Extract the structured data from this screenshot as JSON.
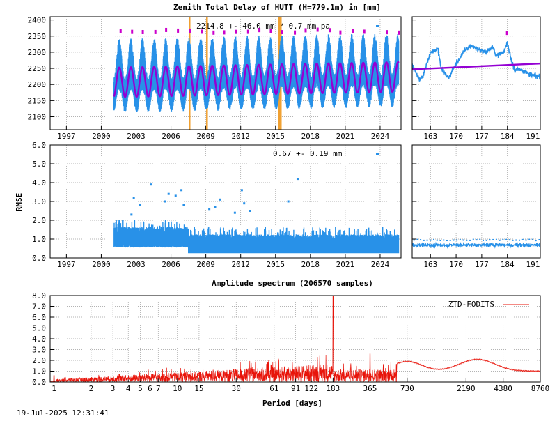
{
  "colors": {
    "ztd": "#2891e8",
    "model": "#9400d3",
    "outlier": "#cc00cc",
    "breaks": "#f0a030",
    "spectrum": "#e8140a",
    "grid": "#9a9a9a"
  },
  "footer": {
    "timestamp": "19-Jul-2025 12:31:41"
  },
  "chart_data": [
    {
      "id": "ztd",
      "type": "scatter",
      "title": "Zenith Total Delay of HUTT (H=779.1m) in [mm]",
      "annotation": "2214.8 +-  46.0 mm /  0.7 mm pa",
      "ylim": [
        2060,
        2410
      ],
      "yticks": [
        "2100",
        "2150",
        "2200",
        "2250",
        "2300",
        "2350",
        "2400"
      ],
      "xlim": [
        1995.6,
        2025.8
      ],
      "xticks": [
        "1997",
        "2000",
        "2003",
        "2006",
        "2009",
        "2012",
        "2015",
        "2018",
        "2021",
        "2024"
      ],
      "data_start": 2001.1,
      "data_end": 2025.6,
      "mean": 2214.8,
      "seasonal_amplitude": 46.0,
      "trend_mm_per_year": 0.7,
      "breaks": [
        2007.6,
        2009.1,
        2015.3,
        2015.45
      ],
      "grid": true
    },
    {
      "id": "ztd-zoom",
      "type": "scatter",
      "xlim": [
        158,
        193
      ],
      "xticks": [
        "163",
        "170",
        "177",
        "184",
        "191"
      ],
      "ylim": [
        2060,
        2410
      ],
      "grid": true
    },
    {
      "id": "rmse",
      "type": "scatter",
      "annotation": "0.67 +-  0.19 mm",
      "ylabel": "RMSE",
      "ylim": [
        0.0,
        6.0
      ],
      "yticks": [
        "0.0",
        "1.0",
        "2.0",
        "3.0",
        "4.0",
        "5.0",
        "6.0"
      ],
      "xlim": [
        1995.6,
        2025.8
      ],
      "xticks": [
        "1997",
        "2000",
        "2003",
        "2006",
        "2009",
        "2012",
        "2015",
        "2018",
        "2021",
        "2024"
      ],
      "mean": 0.67,
      "std": 0.19,
      "outliers": [
        [
          2002.8,
          3.2
        ],
        [
          2004.3,
          3.9
        ],
        [
          2005.5,
          3.0
        ],
        [
          2005.8,
          3.4
        ],
        [
          2006.4,
          3.3
        ],
        [
          2006.9,
          3.6
        ],
        [
          2007.1,
          2.8
        ],
        [
          2009.3,
          2.6
        ],
        [
          2009.8,
          2.7
        ],
        [
          2010.2,
          3.1
        ],
        [
          2011.5,
          2.4
        ],
        [
          2012.1,
          3.6
        ],
        [
          2012.3,
          2.9
        ],
        [
          2012.8,
          2.5
        ],
        [
          2016.1,
          3.0
        ],
        [
          2016.9,
          4.2
        ],
        [
          2003.3,
          2.8
        ],
        [
          2002.6,
          2.3
        ]
      ],
      "grid": true
    },
    {
      "id": "rmse-zoom",
      "type": "scatter",
      "xlim": [
        158,
        193
      ],
      "xticks": [
        "163",
        "170",
        "177",
        "184",
        "191"
      ],
      "ylim": [
        0.0,
        6.0
      ],
      "grid": true
    },
    {
      "id": "spectrum",
      "type": "line",
      "title": "Amplitude spectrum (206570 samples)",
      "xlabel": "Period [days]",
      "xscale": "log",
      "xlim": [
        0.93,
        8760
      ],
      "xticks": [
        "1",
        "2",
        "3",
        "4",
        "5",
        "6",
        "7",
        "10",
        "15",
        "30",
        "61",
        "91",
        "122",
        "183",
        "365",
        "730",
        "2190",
        "4380",
        "8760"
      ],
      "ylim": [
        0.0,
        8.0
      ],
      "yticks": [
        "0.0",
        "1.0",
        "2.0",
        "3.0",
        "4.0",
        "5.0",
        "6.0",
        "7.0",
        "8.0"
      ],
      "legend": "ZTD-FODITS",
      "legend_position": "top-right",
      "peaks": [
        [
          1,
          0.6
        ],
        [
          183,
          8.0
        ],
        [
          365,
          2.6
        ],
        [
          730,
          2.0
        ],
        [
          2190,
          2.2
        ],
        [
          4380,
          1.1
        ],
        [
          8760,
          1.0
        ]
      ],
      "grid": true
    }
  ]
}
